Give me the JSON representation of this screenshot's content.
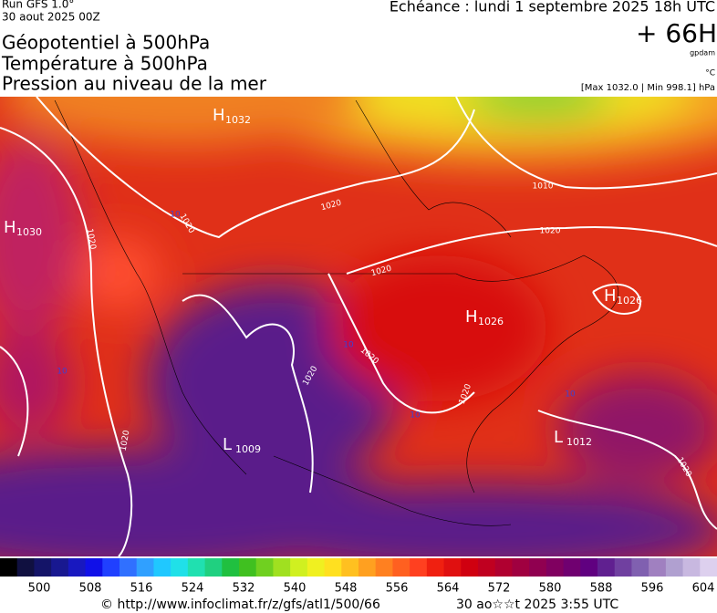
{
  "header": {
    "run": "Run GFS 1.0°",
    "run_date": "30 aout 2025 00Z",
    "fields": [
      "Géopotentiel à 500hPa",
      "Température à 500hPa",
      "Pression au niveau de la mer"
    ],
    "forecast": "Échéance : lundi 1 septembre 2025 18h UTC",
    "lead": "+ 66H",
    "unit_geo": "gpdam",
    "unit_temp": "°C",
    "pressure_range": "[Max 1032.0 | Min 998.1] hPa"
  },
  "map": {
    "centers": [
      {
        "kind": "H",
        "value": "1032"
      },
      {
        "kind": "H",
        "value": "1030"
      },
      {
        "kind": "H",
        "value": "1026"
      },
      {
        "kind": "H",
        "value": "1026"
      },
      {
        "kind": "L",
        "value": "1009"
      },
      {
        "kind": "L",
        "value": "1012"
      }
    ],
    "isobar_labels": [
      "1020",
      "1020",
      "1020",
      "1010",
      "1020",
      "1020",
      "1020",
      "1020",
      "1020",
      "1020",
      "1020"
    ],
    "isotherm_labels": [
      "10",
      "10",
      "10",
      "10",
      "10"
    ]
  },
  "colorbar": {
    "ticks": [
      500,
      508,
      516,
      524,
      532,
      540,
      548,
      556,
      564,
      572,
      580,
      588,
      596,
      604
    ]
  },
  "footer": {
    "source": "© http://www.infoclimat.fr/z/gfs/atl1/500/66",
    "generated": "30 ao☆☆t 2025  3:55 UTC"
  }
}
